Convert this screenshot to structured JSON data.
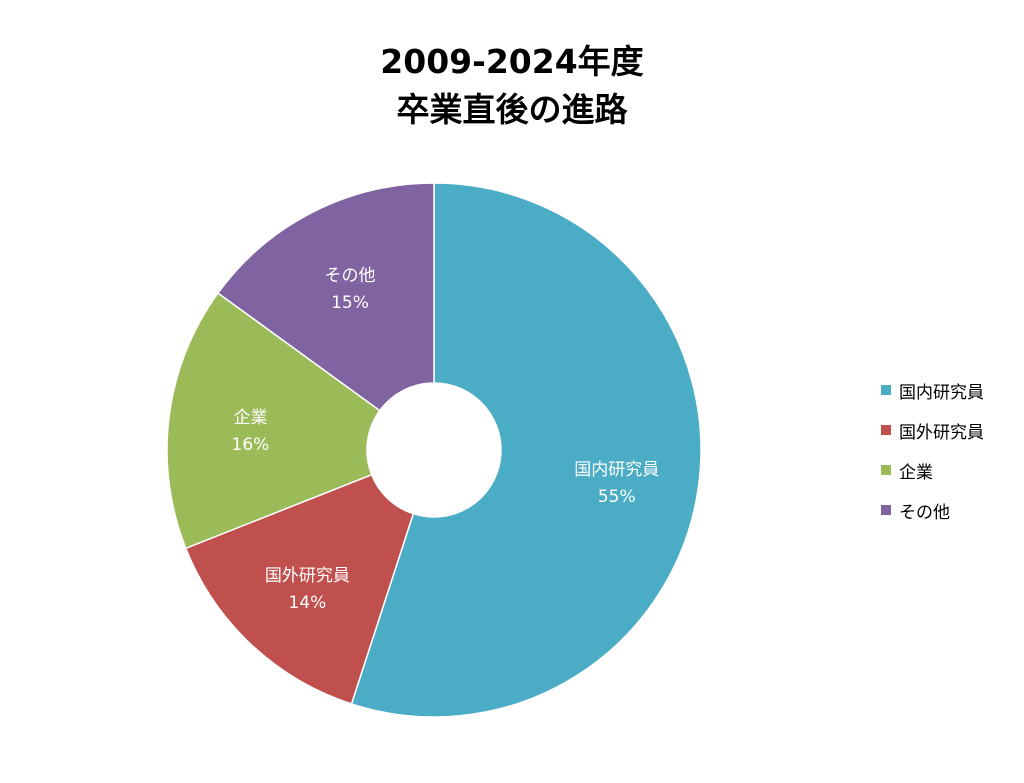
{
  "chart_data": {
    "type": "pie",
    "style": "donut",
    "title": [
      "2009-2024年度",
      "卒業直後の進路"
    ],
    "categories": [
      "国内研究員",
      "国外研究員",
      "企業",
      "その他"
    ],
    "values": [
      55,
      14,
      16,
      15
    ],
    "value_labels": [
      "55%",
      "14%",
      "16%",
      "15%"
    ],
    "colors": [
      "#4BACC6",
      "#C0504D",
      "#9BBB59",
      "#8064A2"
    ],
    "legend": "right",
    "start_angle": "top, clockwise"
  }
}
